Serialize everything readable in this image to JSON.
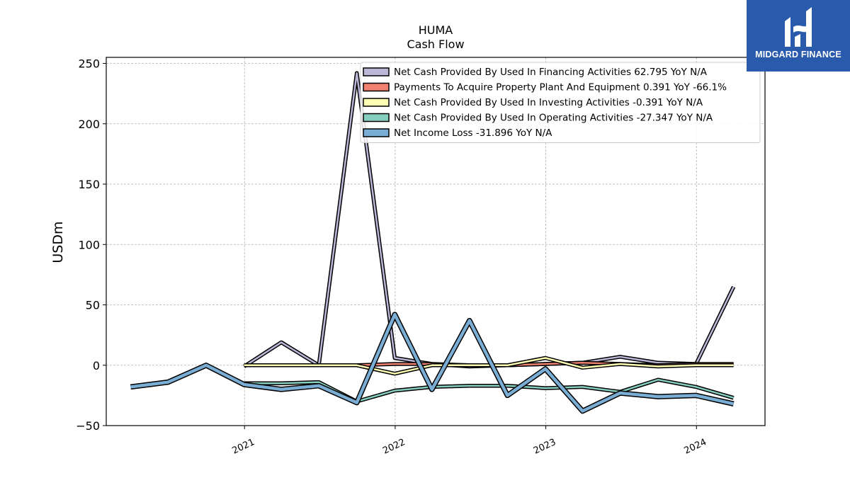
{
  "chart_data": {
    "type": "line",
    "title": "HUMA",
    "subtitle": "Cash Flow",
    "ylabel": "USDm",
    "ylim": [
      -50,
      255
    ],
    "yticks": [
      -50,
      0,
      50,
      100,
      150,
      200,
      250
    ],
    "xlim": [
      "2020-02-01",
      "2024-06-15"
    ],
    "xticks": [
      {
        "date": "2021-01-01",
        "label": "2021"
      },
      {
        "date": "2022-01-01",
        "label": "2022"
      },
      {
        "date": "2023-01-01",
        "label": "2023"
      },
      {
        "date": "2024-01-01",
        "label": "2024"
      }
    ],
    "grid": true,
    "legend_position": "top-right",
    "series": [
      {
        "name": "Net Cash Provided By Used In Financing Activities",
        "legend": "Net Cash Provided By Used In Financing Activities  62.795 YoY N/A",
        "color": "#bcb7d8",
        "width": 2.5,
        "points": [
          [
            "2020-12-31",
            -1
          ],
          [
            "2021-03-31",
            19
          ],
          [
            "2021-06-30",
            0
          ],
          [
            "2021-09-30",
            242
          ],
          [
            "2021-12-31",
            6
          ],
          [
            "2022-03-31",
            1
          ],
          [
            "2022-06-30",
            -1
          ],
          [
            "2022-09-30",
            0
          ],
          [
            "2022-12-31",
            1
          ],
          [
            "2023-03-31",
            2
          ],
          [
            "2023-06-30",
            7
          ],
          [
            "2023-09-30",
            2
          ],
          [
            "2023-12-31",
            1
          ],
          [
            "2024-03-31",
            65
          ]
        ]
      },
      {
        "name": "Payments To Acquire Property Plant And Equipment",
        "legend": "Payments To Acquire Property Plant And Equipment  0.391 YoY -66.1%",
        "color": "#f08070",
        "width": 2.5,
        "points": [
          [
            "2020-12-31",
            0
          ],
          [
            "2021-03-31",
            0
          ],
          [
            "2021-06-30",
            0
          ],
          [
            "2021-09-30",
            0
          ],
          [
            "2021-12-31",
            1
          ],
          [
            "2022-03-31",
            1
          ],
          [
            "2022-06-30",
            0
          ],
          [
            "2022-09-30",
            0
          ],
          [
            "2022-12-31",
            1
          ],
          [
            "2023-03-31",
            2
          ],
          [
            "2023-06-30",
            1
          ],
          [
            "2023-09-30",
            0
          ],
          [
            "2023-12-31",
            1
          ],
          [
            "2024-03-31",
            1
          ]
        ]
      },
      {
        "name": "Net Cash Provided By Used In Investing Activities",
        "legend": "Net Cash Provided By Used In Investing Activities  -0.391 YoY N/A",
        "color": "#ffffb3",
        "width": 2.5,
        "points": [
          [
            "2020-12-31",
            0
          ],
          [
            "2021-03-31",
            0
          ],
          [
            "2021-06-30",
            0
          ],
          [
            "2021-09-30",
            0
          ],
          [
            "2021-12-31",
            -7
          ],
          [
            "2022-03-31",
            0
          ],
          [
            "2022-06-30",
            0
          ],
          [
            "2022-09-30",
            0
          ],
          [
            "2022-12-31",
            6
          ],
          [
            "2023-03-31",
            -2
          ],
          [
            "2023-06-30",
            1
          ],
          [
            "2023-09-30",
            -1
          ],
          [
            "2023-12-31",
            0
          ],
          [
            "2024-03-31",
            0
          ]
        ]
      },
      {
        "name": "Net Cash Provided By Used In Operating Activities",
        "legend": "Net Cash Provided By Used In Operating Activities  -27.347 YoY N/A",
        "color": "#86cfc0",
        "width": 2.5,
        "points": [
          [
            "2020-12-31",
            -15
          ],
          [
            "2021-03-31",
            -15
          ],
          [
            "2021-06-30",
            -14
          ],
          [
            "2021-09-30",
            -30
          ],
          [
            "2021-12-31",
            -21
          ],
          [
            "2022-03-31",
            -18
          ],
          [
            "2022-06-30",
            -17
          ],
          [
            "2022-09-30",
            -17
          ],
          [
            "2022-12-31",
            -19
          ],
          [
            "2023-03-31",
            -18
          ],
          [
            "2023-06-30",
            -22
          ],
          [
            "2023-09-30",
            -12
          ],
          [
            "2023-12-31",
            -18
          ],
          [
            "2024-03-31",
            -27
          ]
        ]
      },
      {
        "name": "Net Income Loss",
        "legend": "Net Income Loss  -31.896 YoY N/A",
        "color": "#7aadd4",
        "width": 4.5,
        "points": [
          [
            "2020-03-31",
            -18
          ],
          [
            "2020-06-30",
            -14
          ],
          [
            "2020-09-30",
            0
          ],
          [
            "2020-12-31",
            -16
          ],
          [
            "2021-03-31",
            -20
          ],
          [
            "2021-06-30",
            -17
          ],
          [
            "2021-09-30",
            -31
          ],
          [
            "2021-12-31",
            42
          ],
          [
            "2022-03-31",
            -20
          ],
          [
            "2022-06-30",
            37
          ],
          [
            "2022-09-30",
            -25
          ],
          [
            "2022-12-31",
            -3
          ],
          [
            "2023-03-31",
            -38
          ],
          [
            "2023-06-30",
            -23
          ],
          [
            "2023-09-30",
            -26
          ],
          [
            "2023-12-31",
            -25
          ],
          [
            "2024-03-31",
            -32
          ]
        ]
      }
    ]
  },
  "logo": {
    "text": "MIDGARD FINANCE",
    "background": "#2a5aab"
  }
}
